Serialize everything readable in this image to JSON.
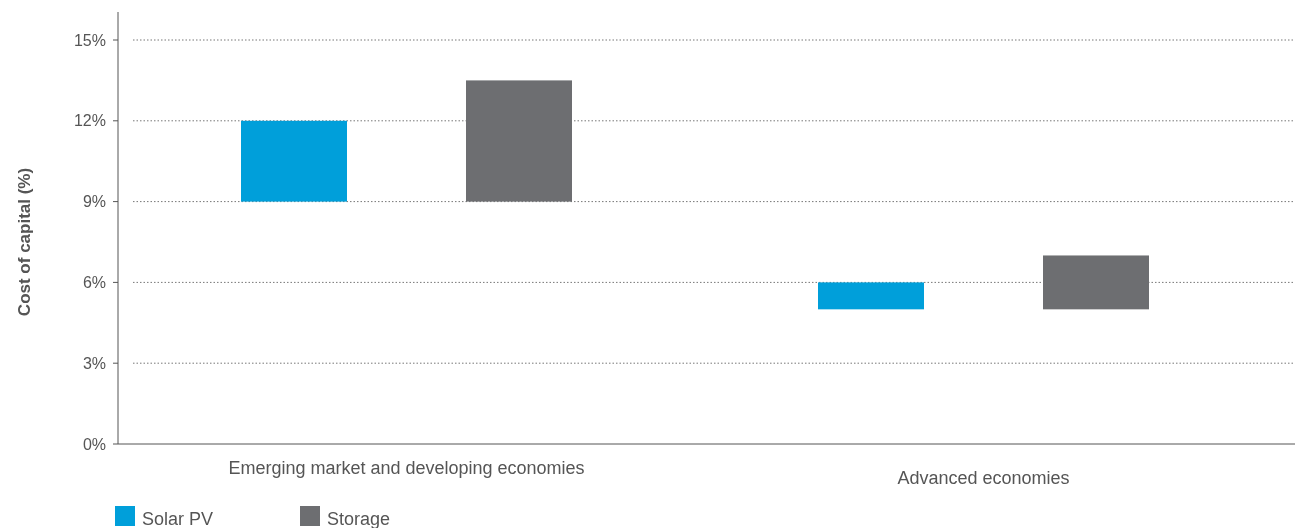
{
  "chart_data": {
    "type": "bar",
    "ylabel": "Cost of capital (%)",
    "categories": [
      "Emerging market and developing economies",
      "Advanced economies"
    ],
    "series": [
      {
        "name": "Solar PV",
        "color": "#009fda",
        "values": [
          3,
          1
        ],
        "base": [
          9,
          5
        ]
      },
      {
        "name": "Storage",
        "color": "#6d6e71",
        "values": [
          4.5,
          2
        ],
        "base": [
          9,
          5
        ]
      }
    ],
    "ylim": [
      0,
      15
    ],
    "yticks": [
      {
        "value": 0,
        "label": "0%"
      },
      {
        "value": 3,
        "label": "3%"
      },
      {
        "value": 6,
        "label": "6%"
      },
      {
        "value": 9,
        "label": "9%"
      },
      {
        "value": 12,
        "label": "12%"
      },
      {
        "value": 15,
        "label": "15%"
      }
    ],
    "grid": "y",
    "legend": "bottom left"
  }
}
